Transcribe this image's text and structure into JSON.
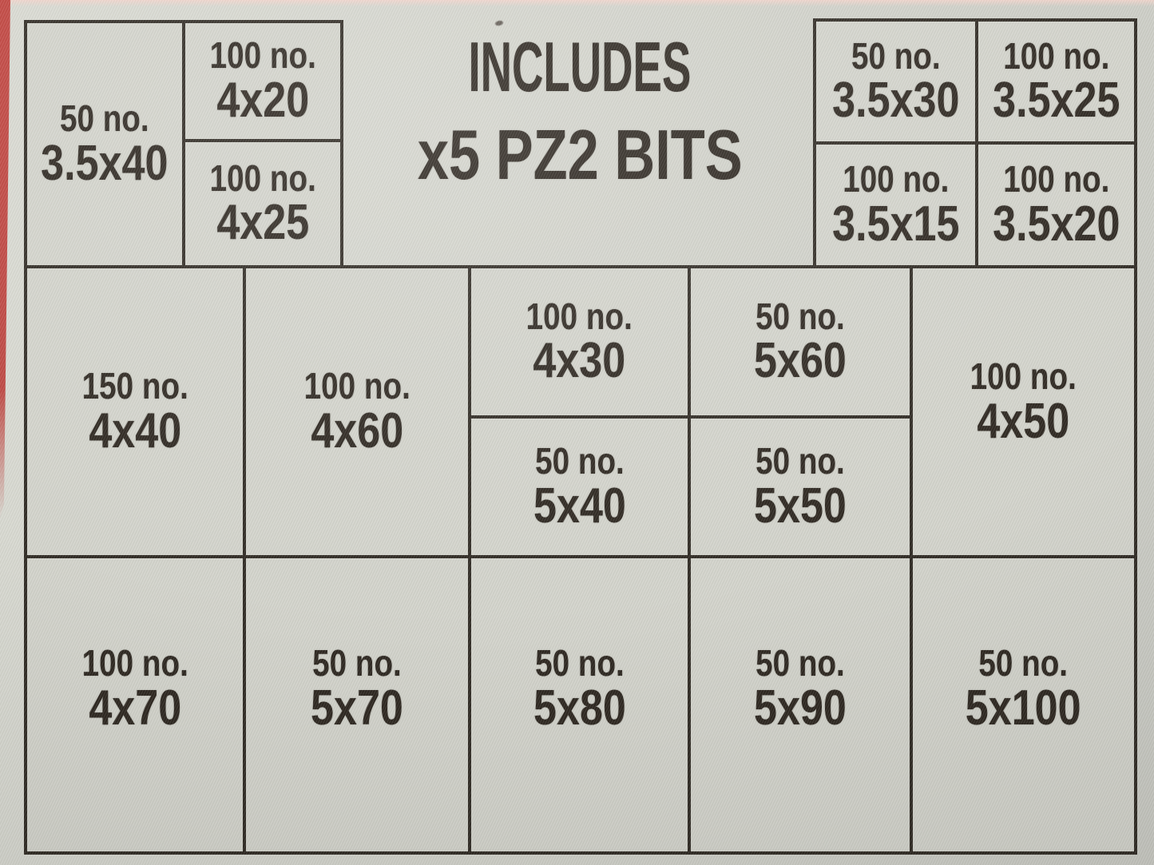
{
  "title_block": {
    "line1": "INCLUDES",
    "line2": "x5 PZ2 BITS"
  },
  "top_left_box": {
    "main": {
      "qty": "50 no.",
      "size": "3.5x40"
    },
    "top": {
      "qty": "100 no.",
      "size": "4x20"
    },
    "bottom": {
      "qty": "100 no.",
      "size": "4x25"
    }
  },
  "top_right_box": {
    "r1c1": {
      "qty": "50 no.",
      "size": "3.5x30"
    },
    "r1c2": {
      "qty": "100 no.",
      "size": "3.5x25"
    },
    "r2c1": {
      "qty": "100 no.",
      "size": "3.5x15"
    },
    "r2c2": {
      "qty": "100 no.",
      "size": "3.5x20"
    }
  },
  "main_grid": {
    "c4x40": {
      "qty": "150 no.",
      "size": "4x40"
    },
    "c4x60": {
      "qty": "100 no.",
      "size": "4x60"
    },
    "c4x30": {
      "qty": "100 no.",
      "size": "4x30"
    },
    "c5x60": {
      "qty": "50 no.",
      "size": "5x60"
    },
    "c5x40": {
      "qty": "50 no.",
      "size": "5x40"
    },
    "c5x50": {
      "qty": "50 no.",
      "size": "5x50"
    },
    "c4x50": {
      "qty": "100 no.",
      "size": "4x50"
    },
    "c4x70": {
      "qty": "100 no.",
      "size": "4x70"
    },
    "c5x70": {
      "qty": "50 no.",
      "size": "5x70"
    },
    "c5x80": {
      "qty": "50 no.",
      "size": "5x80"
    },
    "c5x90": {
      "qty": "50 no.",
      "size": "5x90"
    },
    "c5x100": {
      "qty": "50 no.",
      "size": "5x100"
    }
  },
  "colors": {
    "background": "#d2d3cb",
    "ink": "#29231c",
    "grid_line": "#2b261f",
    "red_edge": "#c0413c",
    "pink_edge": "#eed3ca"
  }
}
